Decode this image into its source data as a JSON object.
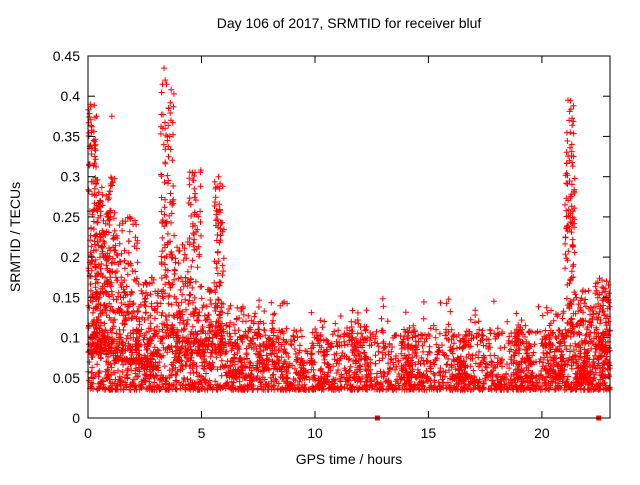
{
  "page": {
    "title": "Day 106 of 2017, SRMTID for receiver bluf"
  },
  "chart_data": {
    "type": "scatter",
    "title": "Day 106 of 2017, SRMTID for receiver bluf",
    "xlabel": "GPS time / hours",
    "ylabel": "SRMTID / TECUs",
    "xlim": [
      0,
      23
    ],
    "ylim": [
      0,
      0.45
    ],
    "xticks": [
      0,
      5,
      10,
      15,
      20
    ],
    "xtick_labels": [
      "0",
      "5",
      "10",
      "15",
      "20"
    ],
    "yticks": [
      0,
      0.05,
      0.1,
      0.15,
      0.2,
      0.25,
      0.3,
      0.35,
      0.4,
      0.45
    ],
    "ytick_labels": [
      "0",
      "0.05",
      "0.1",
      "0.15",
      "0.2",
      "0.25",
      "0.3",
      "0.35",
      "0.4",
      "0.45"
    ],
    "grid": false,
    "legend": "none",
    "background_color": "#ffffff",
    "border_color": "#000000",
    "marker": {
      "shape": "plus",
      "color": "#ff0000",
      "size": 7
    },
    "series_name": "SRMTID",
    "seed": 2017106,
    "cluster_format": "[x_start_hours, x_end_hours, y_min_TECU, y_max_TECU, point_count, low_skew]",
    "density_clusters": [
      [
        0.0,
        23.0,
        0.035,
        0.11,
        2200,
        2.0
      ],
      [
        6.0,
        20.0,
        0.09,
        0.15,
        120,
        2.0
      ],
      [
        0.0,
        0.4,
        0.08,
        0.39,
        140,
        1.6
      ],
      [
        0.3,
        1.2,
        0.08,
        0.3,
        260,
        1.5
      ],
      [
        1.2,
        2.2,
        0.07,
        0.25,
        180,
        1.8
      ],
      [
        2.2,
        3.1,
        0.06,
        0.18,
        120,
        1.6
      ],
      [
        3.2,
        3.8,
        0.1,
        0.43,
        130,
        1.4
      ],
      [
        3.8,
        4.4,
        0.07,
        0.22,
        90,
        1.6
      ],
      [
        4.4,
        5.0,
        0.08,
        0.31,
        110,
        1.5
      ],
      [
        5.0,
        5.5,
        0.06,
        0.16,
        60,
        1.5
      ],
      [
        5.55,
        6.0,
        0.08,
        0.3,
        120,
        1.5
      ],
      [
        6.1,
        7.0,
        0.05,
        0.14,
        80,
        1.8
      ],
      [
        7.3,
        8.7,
        0.06,
        0.145,
        90,
        1.8
      ],
      [
        11.5,
        12.5,
        0.05,
        0.12,
        60,
        1.8
      ],
      [
        13.8,
        14.6,
        0.05,
        0.12,
        50,
        1.8
      ],
      [
        16.0,
        17.0,
        0.05,
        0.11,
        50,
        1.8
      ],
      [
        18.8,
        19.6,
        0.05,
        0.12,
        50,
        1.8
      ],
      [
        20.0,
        21.0,
        0.05,
        0.14,
        90,
        1.6
      ],
      [
        21.0,
        21.45,
        0.1,
        0.395,
        120,
        1.3
      ],
      [
        21.45,
        22.3,
        0.05,
        0.16,
        110,
        1.5
      ],
      [
        22.35,
        23.0,
        0.06,
        0.175,
        130,
        1.3
      ]
    ],
    "notable_points": [
      [
        0.1,
        0.39
      ],
      [
        0.15,
        0.355
      ],
      [
        0.25,
        0.345
      ],
      [
        0.3,
        0.325
      ],
      [
        1.05,
        0.375
      ],
      [
        3.35,
        0.435
      ],
      [
        3.4,
        0.42
      ],
      [
        3.3,
        0.36
      ],
      [
        3.5,
        0.345
      ],
      [
        4.6,
        0.305
      ],
      [
        5.75,
        0.3
      ],
      [
        5.8,
        0.285
      ],
      [
        21.15,
        0.395
      ],
      [
        21.2,
        0.37
      ],
      [
        21.25,
        0.355
      ],
      [
        22.85,
        0.17
      ],
      [
        22.95,
        0.155
      ]
    ],
    "baseline_markers": [
      [
        12.75,
        0.0
      ],
      [
        22.5,
        0.0
      ]
    ]
  }
}
